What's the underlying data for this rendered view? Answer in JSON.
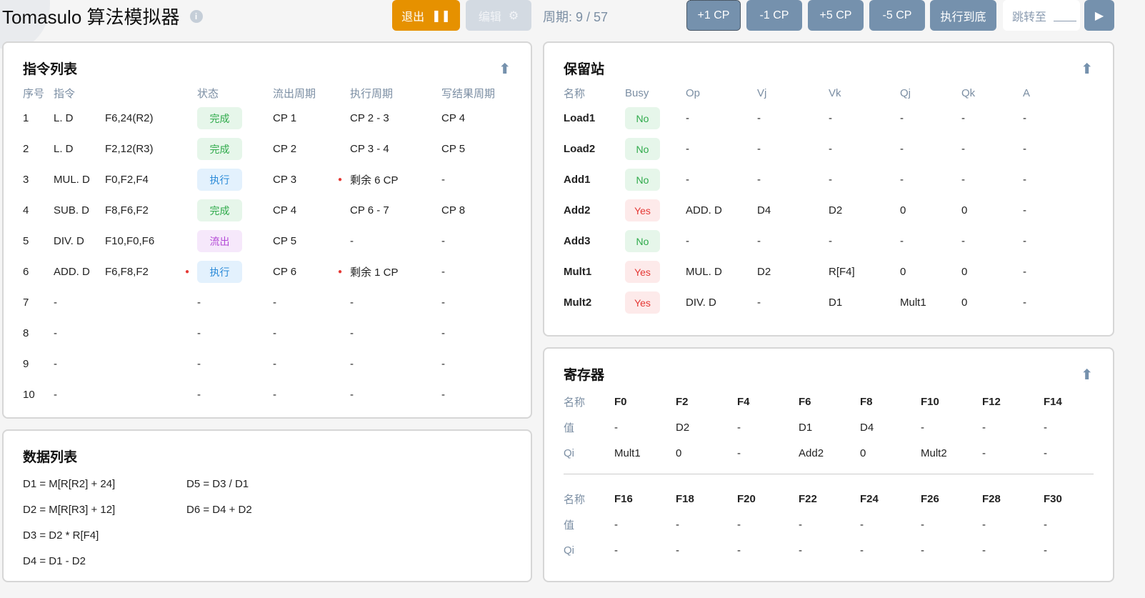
{
  "header": {
    "title": "Tomasulo 算法模拟器",
    "exit_label": "退出",
    "edit_label": "编辑",
    "cycle": "周期: 9 / 57",
    "buttons": [
      "+1 CP",
      "-1 CP",
      "+5 CP",
      "-5 CP",
      "执行到底"
    ],
    "jump_label": "跳转至",
    "jump_value": ""
  },
  "colors": {
    "exit": "#e69100",
    "slate": "#7591ad",
    "done_bg": "#e6f6ea",
    "done_fg": "#2eaa4a",
    "exec_bg": "#e3f1fd",
    "exec_fg": "#2a8ad8",
    "issue_bg": "#f6e8fb",
    "issue_fg": "#b44bd6",
    "no_fg": "#2eaa4a",
    "yes_fg": "#e53935",
    "yes_bg": "#fdeaea"
  },
  "instructions": {
    "title": "指令列表",
    "headers": [
      "序号",
      "指令",
      "",
      "状态",
      "流出周期",
      "执行周期",
      "写结果周期"
    ],
    "rows": [
      {
        "idx": "1",
        "op": "L. D",
        "args": "F6,24(R2)",
        "status": "完成",
        "kind": "done",
        "issue": "CP 1",
        "exec": "CP 2 - 3",
        "write": "CP 4"
      },
      {
        "idx": "2",
        "op": "L. D",
        "args": "F2,12(R3)",
        "status": "完成",
        "kind": "done",
        "issue": "CP 2",
        "exec": "CP 3 - 4",
        "write": "CP 5"
      },
      {
        "idx": "3",
        "op": "MUL. D",
        "args": "F0,F2,F4",
        "status": "执行",
        "kind": "exec",
        "issue": "CP 3",
        "exec": "剩余 6 CP",
        "exec_dot": true,
        "write": "-"
      },
      {
        "idx": "4",
        "op": "SUB. D",
        "args": "F8,F6,F2",
        "status": "完成",
        "kind": "done",
        "issue": "CP 4",
        "exec": "CP 6 - 7",
        "write": "CP 8"
      },
      {
        "idx": "5",
        "op": "DIV. D",
        "args": "F10,F0,F6",
        "status": "流出",
        "kind": "issue",
        "issue": "CP 5",
        "exec": "-",
        "write": "-"
      },
      {
        "idx": "6",
        "op": "ADD. D",
        "args": "F6,F8,F2",
        "status": "执行",
        "kind": "exec",
        "status_dot": true,
        "issue": "CP 6",
        "exec": "剩余 1 CP",
        "exec_dot": true,
        "write": "-"
      },
      {
        "idx": "7",
        "op": "-",
        "args": "",
        "status": "-",
        "issue": "-",
        "exec": "-",
        "write": "-"
      },
      {
        "idx": "8",
        "op": "-",
        "args": "",
        "status": "-",
        "issue": "-",
        "exec": "-",
        "write": "-"
      },
      {
        "idx": "9",
        "op": "-",
        "args": "",
        "status": "-",
        "issue": "-",
        "exec": "-",
        "write": "-"
      },
      {
        "idx": "10",
        "op": "-",
        "args": "",
        "status": "-",
        "issue": "-",
        "exec": "-",
        "write": "-"
      }
    ]
  },
  "data_list": {
    "title": "数据列表",
    "items": [
      "D1 = M[R[R2] + 24]",
      "D5 = D3 / D1",
      "D2 = M[R[R3] + 12]",
      "D6 = D4 + D2",
      "D3 = D2 * R[F4]",
      "D4 = D1 - D2"
    ]
  },
  "stations": {
    "title": "保留站",
    "headers": [
      "名称",
      "Busy",
      "Op",
      "Vj",
      "Vk",
      "Qj",
      "Qk",
      "A"
    ],
    "rows": [
      [
        "Load1",
        "No",
        "-",
        "-",
        "-",
        "-",
        "-",
        "-"
      ],
      [
        "Load2",
        "No",
        "-",
        "-",
        "-",
        "-",
        "-",
        "-"
      ],
      [
        "Add1",
        "No",
        "-",
        "-",
        "-",
        "-",
        "-",
        "-"
      ],
      [
        "Add2",
        "Yes",
        "ADD. D",
        "D4",
        "D2",
        "0",
        "0",
        "-"
      ],
      [
        "Add3",
        "No",
        "-",
        "-",
        "-",
        "-",
        "-",
        "-"
      ],
      [
        "Mult1",
        "Yes",
        "MUL. D",
        "D2",
        "R[F4]",
        "0",
        "0",
        "-"
      ],
      [
        "Mult2",
        "Yes",
        "DIV. D",
        "-",
        "D1",
        "Mult1",
        "0",
        "-"
      ]
    ]
  },
  "registers": {
    "title": "寄存器",
    "row_labels": [
      "名称",
      "值",
      "Qi"
    ],
    "groups": [
      {
        "names": [
          "F0",
          "F2",
          "F4",
          "F6",
          "F8",
          "F10",
          "F12",
          "F14"
        ],
        "values": [
          "-",
          "D2",
          "-",
          "D1",
          "D4",
          "-",
          "-",
          "-"
        ],
        "qi": [
          "Mult1",
          "0",
          "-",
          "Add2",
          "0",
          "Mult2",
          "-",
          "-"
        ]
      },
      {
        "names": [
          "F16",
          "F18",
          "F20",
          "F22",
          "F24",
          "F26",
          "F28",
          "F30"
        ],
        "values": [
          "-",
          "-",
          "-",
          "-",
          "-",
          "-",
          "-",
          "-"
        ],
        "qi": [
          "-",
          "-",
          "-",
          "-",
          "-",
          "-",
          "-",
          "-"
        ]
      }
    ]
  }
}
